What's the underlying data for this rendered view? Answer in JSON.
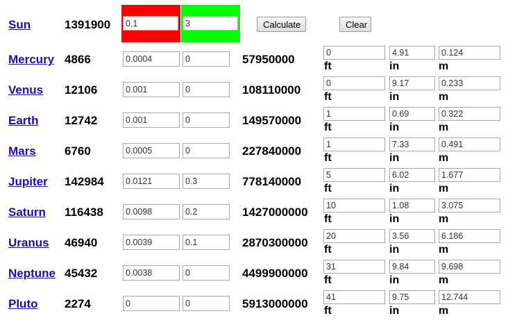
{
  "sun": {
    "name": "Sun",
    "diameter": "1391900",
    "scale_value": "0.1",
    "multiplier_value": "3",
    "scale_bg": "#ff0000",
    "multiplier_bg": "#00ff00"
  },
  "buttons": {
    "calculate": "Calculate",
    "clear": "Clear"
  },
  "units": {
    "ft": "ft",
    "in": "in",
    "m": "m"
  },
  "planets": [
    {
      "name": "Mercury",
      "diameter": "4866",
      "size": "0.0004",
      "orbit": "0",
      "distance": "57950000",
      "ft": "0",
      "in": "4.91",
      "m": "0.124"
    },
    {
      "name": "Venus",
      "diameter": "12106",
      "size": "0.001",
      "orbit": "0",
      "distance": "108110000",
      "ft": "0",
      "in": "9.17",
      "m": "0.233"
    },
    {
      "name": "Earth",
      "diameter": "12742",
      "size": "0.001",
      "orbit": "0",
      "distance": "149570000",
      "ft": "1",
      "in": "0.69",
      "m": "0.322"
    },
    {
      "name": "Mars",
      "diameter": "6760",
      "size": "0.0005",
      "orbit": "0",
      "distance": "227840000",
      "ft": "1",
      "in": "7.33",
      "m": "0.491"
    },
    {
      "name": "Jupiter",
      "diameter": "142984",
      "size": "0.0121",
      "orbit": "0.3",
      "distance": "778140000",
      "ft": "5",
      "in": "6.02",
      "m": "1.677"
    },
    {
      "name": "Saturn",
      "diameter": "116438",
      "size": "0.0098",
      "orbit": "0.2",
      "distance": "1427000000",
      "ft": "10",
      "in": "1.08",
      "m": "3.075"
    },
    {
      "name": "Uranus",
      "diameter": "46940",
      "size": "0.0039",
      "orbit": "0.1",
      "distance": "2870300000",
      "ft": "20",
      "in": "3.56",
      "m": "6.186"
    },
    {
      "name": "Neptune",
      "diameter": "45432",
      "size": "0.0038",
      "orbit": "0",
      "distance": "4499900000",
      "ft": "31",
      "in": "9.84",
      "m": "9.698"
    },
    {
      "name": "Pluto",
      "diameter": "2274",
      "size": "0",
      "orbit": "0",
      "distance": "5913000000",
      "ft": "41",
      "in": "9.75",
      "m": "12.744"
    }
  ]
}
